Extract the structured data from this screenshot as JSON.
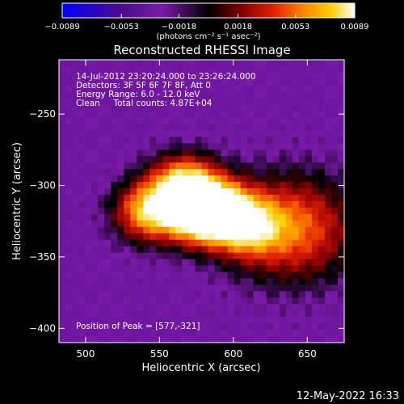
{
  "chart_data": {
    "type": "heatmap",
    "title": "Reconstructed RHESSI Image",
    "xlabel": "Heliocentric X (arcsec)",
    "ylabel": "Heliocentric Y (arcsec)",
    "xlim": [
      482,
      675
    ],
    "ylim": [
      -410,
      -212
    ],
    "x_ticks": [
      500,
      550,
      600,
      650
    ],
    "y_ticks": [
      -250,
      -300,
      -350,
      -400
    ],
    "colorbar": {
      "range": [
        -0.0089,
        0.0089
      ],
      "tick_values": [
        -0.0089,
        -0.0053,
        -0.0018,
        0.0018,
        0.0053,
        0.0089
      ],
      "tick_labels": [
        "−0.0089",
        "−0.0053",
        "−0.0018",
        "0.0018",
        "0.0053",
        "0.0089"
      ],
      "unit_label": "(photons cm⁻² s⁻¹ asec⁻²)",
      "colors": [
        "#0000ff",
        "#4b0a8c",
        "#7a1aa8",
        "#000000",
        "#8b0000",
        "#e02000",
        "#ff8000",
        "#ffd000",
        "#ffffff"
      ]
    },
    "sources": [
      {
        "x": 567,
        "y": -300,
        "peak": 0.0089
      },
      {
        "x": 577,
        "y": -321,
        "peak": 0.0089
      },
      {
        "x": 543,
        "y": -318,
        "peak": 0.008
      },
      {
        "x": 608,
        "y": -328,
        "peak": 0.0068
      },
      {
        "x": 590,
        "y": -315,
        "peak": 0.006
      }
    ],
    "background_level": -0.005,
    "info_lines": [
      "14-Jul-2012 23:20:24.000 to 23:26:24.000",
      "Detectors: 3F 5F 6F 7F 8F, Att 0",
      "Energy Range: 6.0 - 12.0 keV",
      "Clean     Total counts: 4.87E+04"
    ],
    "peak_label": "Position of Peak = [577,-321]",
    "peak_position": [
      577,
      -321
    ]
  },
  "footer": {
    "date": "12-May-2022 16:33"
  }
}
